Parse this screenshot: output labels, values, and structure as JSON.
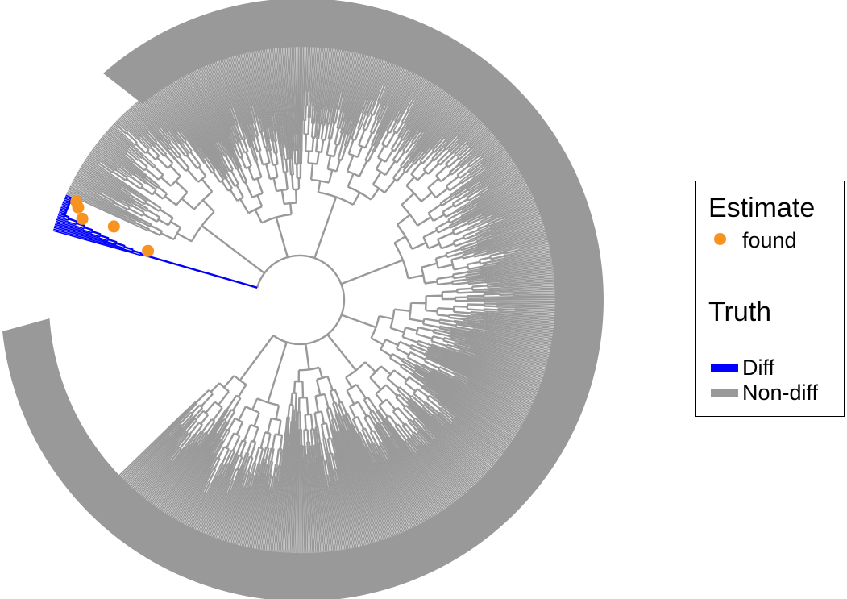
{
  "legend": {
    "estimate_title": "Estimate",
    "estimate_items": [
      {
        "label": "found",
        "color": "#f7931e",
        "shape": "point"
      }
    ],
    "truth_title": "Truth",
    "truth_items": [
      {
        "label": "Diff",
        "color": "#0000ff",
        "shape": "line"
      },
      {
        "label": "Non-diff",
        "color": "#999999",
        "shape": "line"
      }
    ]
  },
  "tree": {
    "layout": "circular",
    "branch_colors": {
      "diff": "#0000ff",
      "non_diff": "#999999"
    },
    "found_color": "#f7931e",
    "found_node_count": 5,
    "diff_leaf_count": 24
  }
}
